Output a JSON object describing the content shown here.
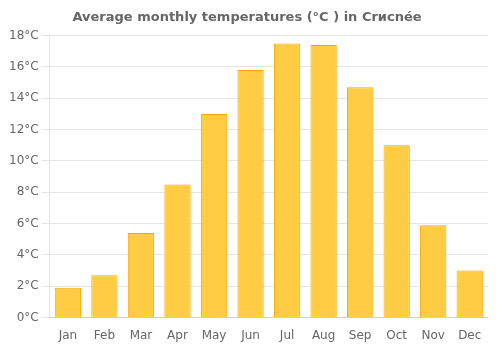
{
  "chart_data": {
    "type": "bar",
    "title": "Average monthly temperatures (°C ) in Crисnée",
    "categories": [
      "Jan",
      "Feb",
      "Mar",
      "Apr",
      "May",
      "Jun",
      "Jul",
      "Aug",
      "Sep",
      "Oct",
      "Nov",
      "Dec"
    ],
    "values": [
      1.9,
      2.7,
      5.4,
      8.5,
      13.0,
      15.8,
      17.5,
      17.4,
      14.7,
      11.0,
      5.9,
      3.0
    ],
    "color": "#FFCC44",
    "ylim": [
      0,
      18
    ],
    "yticks": [
      {
        "value": 0,
        "label": "0°C"
      },
      {
        "value": 2,
        "label": "2°C"
      },
      {
        "value": 4,
        "label": "4°C"
      },
      {
        "value": 6,
        "label": "6°C"
      },
      {
        "value": 8,
        "label": "8°C"
      },
      {
        "value": 10,
        "label": "10°C"
      },
      {
        "value": 12,
        "label": "12°C"
      },
      {
        "value": 14,
        "label": "14°C"
      },
      {
        "value": 16,
        "label": "16°C"
      },
      {
        "value": 18,
        "label": "18°C"
      }
    ],
    "grid": true
  }
}
